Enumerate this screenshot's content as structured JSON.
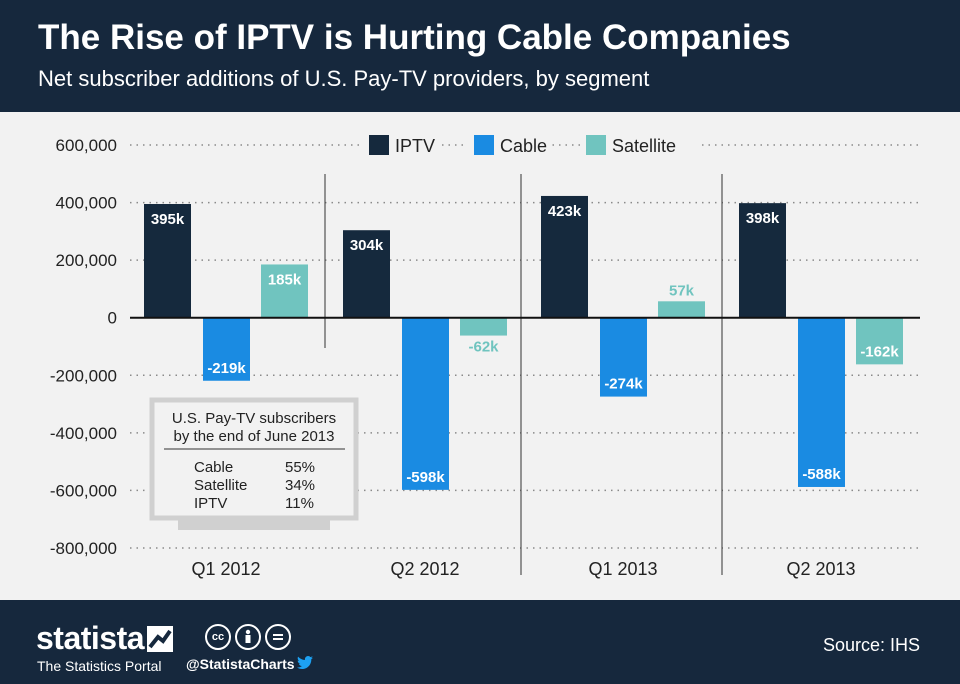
{
  "header": {
    "title": "The Rise of IPTV is Hurting Cable Companies",
    "subtitle": "Net subscriber additions of U.S. Pay-TV providers, by segment"
  },
  "chart_data": {
    "type": "bar",
    "categories": [
      "Q1 2012",
      "Q2 2012",
      "Q1 2013",
      "Q2 2013"
    ],
    "series": [
      {
        "name": "IPTV",
        "color": "#15293d",
        "values": [
          395000,
          304000,
          423000,
          398000
        ],
        "labels": [
          "395k",
          "304k",
          "423k",
          "398k"
        ]
      },
      {
        "name": "Cable",
        "color": "#1a8be2",
        "values": [
          -219000,
          -598000,
          -274000,
          -588000
        ],
        "labels": [
          "-219k",
          "-598k",
          "-274k",
          "-588k"
        ]
      },
      {
        "name": "Satellite",
        "color": "#70c4bf",
        "values": [
          185000,
          -62000,
          57000,
          -162000
        ],
        "labels": [
          "185k",
          "-62k",
          "57k",
          "-162k"
        ]
      }
    ],
    "ylim": [
      -800000,
      600000
    ],
    "yticks": [
      600000,
      400000,
      200000,
      0,
      -200000,
      -400000,
      -600000,
      -800000
    ],
    "ytick_labels": [
      "600,000",
      "400,000",
      "200,000",
      "0",
      "-200,000",
      "-400,000",
      "-600,000",
      "-800,000"
    ],
    "grid": true,
    "legend": "top-center"
  },
  "inset": {
    "title_line1": "U.S. Pay-TV subscribers",
    "title_line2": "by the end of June 2013",
    "rows": [
      {
        "label": "Cable",
        "value": "55%"
      },
      {
        "label": "Satellite",
        "value": "34%"
      },
      {
        "label": "IPTV",
        "value": "11%"
      }
    ]
  },
  "footer": {
    "brand": "statista",
    "tagline": "The Statistics Portal",
    "handle": "@StatistaCharts",
    "source": "Source: IHS"
  },
  "colors": {
    "header_bg": "#16283d",
    "background": "#f2f2f2"
  }
}
